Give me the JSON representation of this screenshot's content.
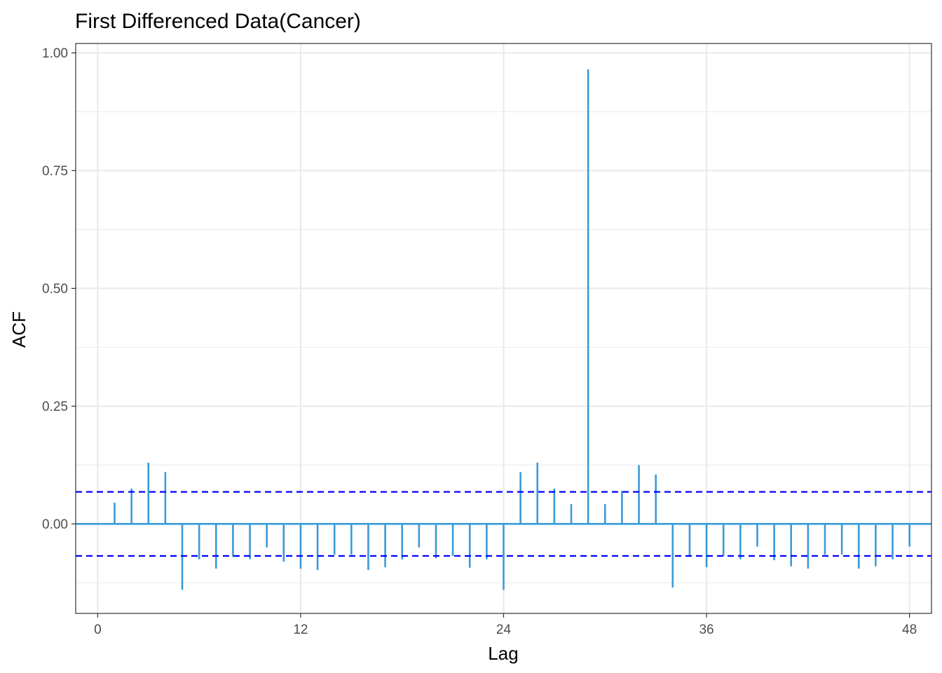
{
  "chart_data": {
    "type": "bar",
    "title": "First Differenced Data(Cancer)",
    "xlabel": "Lag",
    "ylabel": "ACF",
    "xlim": [
      -1.3,
      49.3
    ],
    "ylim": [
      -0.19,
      1.02
    ],
    "x_ticks": [
      0,
      12,
      24,
      36,
      48
    ],
    "x_tick_labels": [
      "0",
      "12",
      "24",
      "36",
      "48"
    ],
    "y_ticks": [
      0,
      0.25,
      0.5,
      0.75,
      1
    ],
    "y_tick_labels": [
      "0.00",
      "0.25",
      "0.50",
      "0.75",
      "1.00"
    ],
    "y_minor_ticks": [
      -0.125,
      0.125,
      0.375,
      0.625,
      0.875
    ],
    "grid": true,
    "lags": [
      1,
      2,
      3,
      4,
      5,
      6,
      7,
      8,
      9,
      10,
      11,
      12,
      13,
      14,
      15,
      16,
      17,
      18,
      19,
      20,
      21,
      22,
      23,
      24,
      25,
      26,
      27,
      28,
      29,
      30,
      31,
      32,
      33,
      34,
      35,
      36,
      37,
      38,
      39,
      40,
      41,
      42,
      43,
      44,
      45,
      46,
      47,
      48
    ],
    "values": [
      0.045,
      0.075,
      0.13,
      0.11,
      -0.14,
      -0.075,
      -0.095,
      -0.07,
      -0.075,
      -0.05,
      -0.08,
      -0.095,
      -0.098,
      -0.065,
      -0.065,
      -0.098,
      -0.092,
      -0.075,
      -0.05,
      -0.073,
      -0.068,
      -0.093,
      -0.075,
      -0.14,
      0.11,
      0.13,
      0.075,
      0.042,
      0.965,
      0.042,
      0.07,
      0.125,
      0.105,
      -0.135,
      -0.07,
      -0.092,
      -0.068,
      -0.075,
      -0.048,
      -0.077,
      -0.09,
      -0.095,
      -0.065,
      -0.065,
      -0.095,
      -0.09,
      -0.075,
      -0.048
    ],
    "confidence_bound": 0.068,
    "colors": {
      "bars": "#3a9ad9",
      "zero_line": "#3a9ad9",
      "bounds": "#0000ff",
      "grid": "#ebebeb",
      "panel_border": "#333333"
    }
  }
}
